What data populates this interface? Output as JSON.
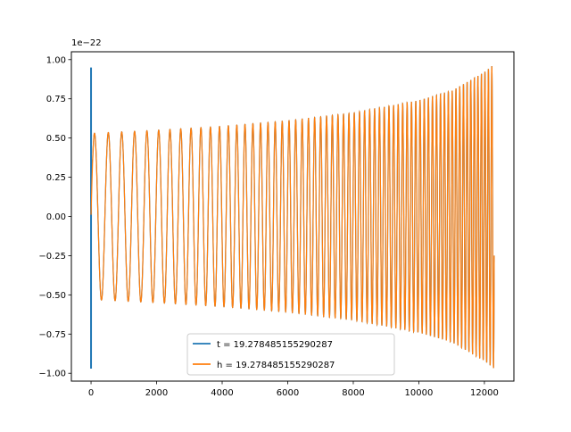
{
  "chart_data": {
    "type": "line",
    "title": "",
    "xlabel": "",
    "ylabel": "",
    "y_offset_label": "1e−22",
    "xlim": [
      -600,
      12900
    ],
    "ylim": [
      -1.05,
      1.05
    ],
    "x_ticks": [
      0,
      2000,
      4000,
      6000,
      8000,
      10000,
      12000
    ],
    "x_tick_labels": [
      "0",
      "2000",
      "4000",
      "6000",
      "8000",
      "10000",
      "12000"
    ],
    "y_ticks": [
      -1.0,
      -0.75,
      -0.5,
      -0.25,
      0.0,
      0.25,
      0.5,
      0.75,
      1.0
    ],
    "y_tick_labels": [
      "−1.00",
      "−0.75",
      "−0.50",
      "−0.25",
      "0.00",
      "0.25",
      "0.50",
      "0.75",
      "1.00"
    ],
    "grid": false,
    "legend_position": "lower-center",
    "series": [
      {
        "name": "t = 19.278485155290287",
        "color": "#1f77b4",
        "x_range": [
          0,
          12300
        ],
        "envelope": {
          "x": [
            0,
            50,
            2000,
            4000,
            6000,
            8000,
            10000,
            11000,
            12000,
            12300
          ],
          "amplitude": [
            0.97,
            0.53,
            0.55,
            0.575,
            0.61,
            0.66,
            0.74,
            0.8,
            0.92,
            0.97
          ]
        },
        "spike": {
          "x": 0,
          "max": 0.95,
          "min": -0.97
        },
        "end_value": -0.25
      },
      {
        "name": "h = 19.278485155290287",
        "color": "#ff7f0e",
        "x_range": [
          0,
          12300
        ],
        "envelope": {
          "x": [
            0,
            2000,
            4000,
            6000,
            8000,
            10000,
            11000,
            12000,
            12300
          ],
          "amplitude": [
            0.53,
            0.55,
            0.575,
            0.61,
            0.66,
            0.74,
            0.8,
            0.92,
            0.97
          ]
        },
        "end_value": -0.25
      }
    ]
  }
}
